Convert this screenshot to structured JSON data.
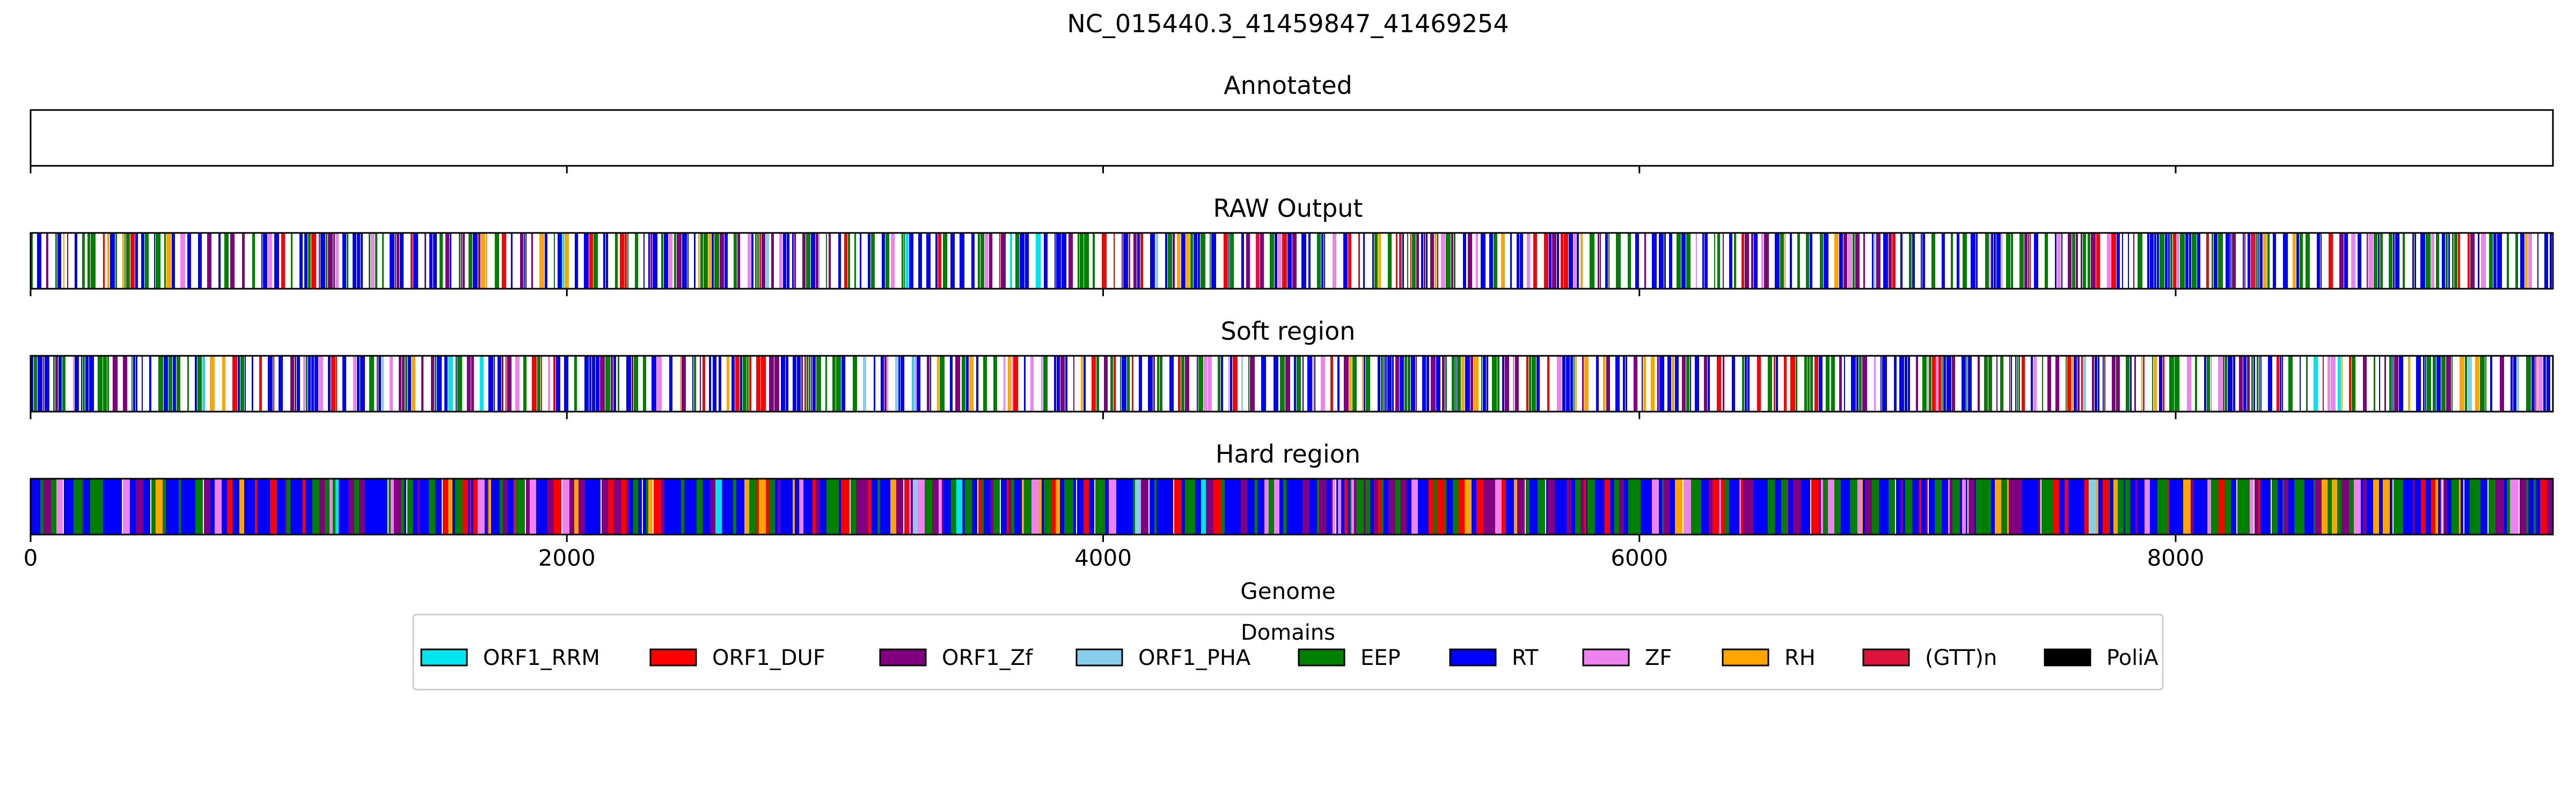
{
  "figure": {
    "title": "NC_015440.3_41459847_41469254"
  },
  "chart_data": {
    "type": "track",
    "xlabel": "Genome",
    "xlim": [
      0,
      9407
    ],
    "xticks": [
      0,
      2000,
      4000,
      6000,
      8000
    ],
    "xtick_labels": [
      "0",
      "2000",
      "4000",
      "6000",
      "8000"
    ],
    "tracks": [
      {
        "title": "Annotated",
        "mode": "empty"
      },
      {
        "title": "RAW Output",
        "mode": "sparse"
      },
      {
        "title": "Soft region",
        "mode": "sparse"
      },
      {
        "title": "Hard region",
        "mode": "dense"
      }
    ],
    "legend": {
      "title": "Domains",
      "placement": "bottom-center",
      "entries": [
        {
          "label": "ORF1_RRM",
          "color": "#00e5ee"
        },
        {
          "label": "ORF1_DUF",
          "color": "#ff0000"
        },
        {
          "label": "ORF1_Zf",
          "color": "#800080"
        },
        {
          "label": "ORF1_PHA",
          "color": "#87ceeb"
        },
        {
          "label": "EEP",
          "color": "#008000"
        },
        {
          "label": "RT",
          "color": "#0000ff"
        },
        {
          "label": "ZF",
          "color": "#ee82ee"
        },
        {
          "label": "RH",
          "color": "#ffa500"
        },
        {
          "label": "(GTT)n",
          "color": "#dc143c"
        },
        {
          "label": "PoliA",
          "color": "#000000"
        }
      ]
    }
  }
}
